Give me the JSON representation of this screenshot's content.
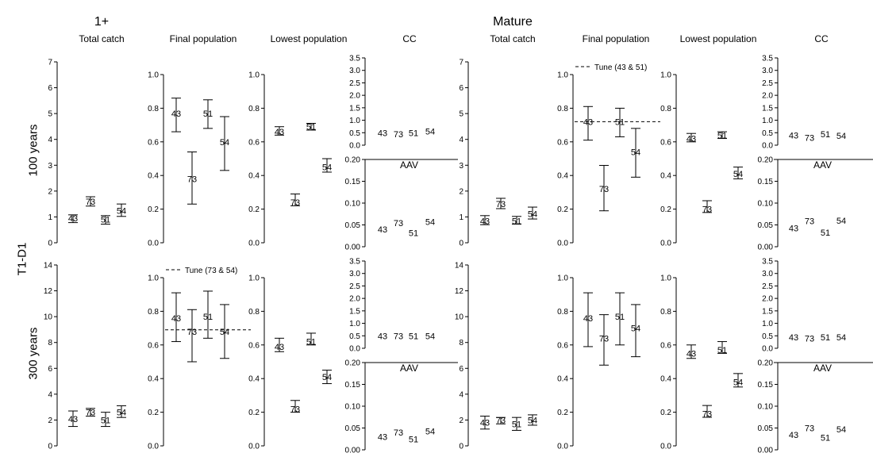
{
  "figure": {
    "row_label": "T1-D1",
    "groups": [
      "1+",
      "Mature"
    ],
    "panel_titles": [
      "Total catch",
      "Final population",
      "Lowest population",
      "CC"
    ],
    "row_titles": [
      "100 years",
      "300 years"
    ],
    "aav_label": "AAV",
    "tune_labels": [
      "Tune (43 & 51)",
      "Tune (73 & 54)"
    ]
  },
  "chart_data": [
    {
      "type": "scatter",
      "title": "Total catch",
      "group": "1+",
      "row": "100 years",
      "ylim": [
        0,
        7
      ],
      "yticks": [
        0,
        1,
        2,
        3,
        4,
        5,
        6,
        7
      ],
      "points": [
        {
          "label": "43",
          "y": 0.95,
          "lo": 0.78,
          "hi": 1.08
        },
        {
          "label": "73",
          "y": 1.6,
          "lo": 1.42,
          "hi": 1.78
        },
        {
          "label": "51",
          "y": 0.9,
          "lo": 0.72,
          "hi": 1.05
        },
        {
          "label": "54",
          "y": 1.25,
          "lo": 1.02,
          "hi": 1.5
        }
      ]
    },
    {
      "type": "scatter",
      "title": "Final population",
      "group": "1+",
      "row": "100 years",
      "ylim": [
        0,
        1
      ],
      "yticks": [
        0.0,
        0.2,
        0.4,
        0.6,
        0.8,
        1.0
      ],
      "points": [
        {
          "label": "43",
          "y": 0.77,
          "lo": 0.66,
          "hi": 0.86
        },
        {
          "label": "73",
          "y": 0.38,
          "lo": 0.23,
          "hi": 0.54
        },
        {
          "label": "51",
          "y": 0.77,
          "lo": 0.68,
          "hi": 0.85
        },
        {
          "label": "54",
          "y": 0.6,
          "lo": 0.43,
          "hi": 0.75
        }
      ]
    },
    {
      "type": "scatter",
      "title": "Lowest population",
      "group": "1+",
      "row": "100 years",
      "ylim": [
        0,
        1
      ],
      "yticks": [
        0.0,
        0.2,
        0.4,
        0.6,
        0.8,
        1.0
      ],
      "points": [
        {
          "label": "43",
          "y": 0.66,
          "lo": 0.64,
          "hi": 0.69
        },
        {
          "label": "73",
          "y": 0.24,
          "lo": 0.22,
          "hi": 0.29
        },
        {
          "label": "51",
          "y": 0.69,
          "lo": 0.67,
          "hi": 0.71
        },
        {
          "label": "54",
          "y": 0.45,
          "lo": 0.42,
          "hi": 0.5
        }
      ]
    },
    {
      "type": "scatter",
      "title": "CC",
      "group": "1+",
      "row": "100 years",
      "ylim": [
        0,
        3.5
      ],
      "yticks": [
        0.0,
        0.5,
        1.0,
        1.5,
        2.0,
        2.5,
        3.0,
        3.5
      ],
      "points": [
        {
          "label": "43",
          "y": 0.5
        },
        {
          "label": "73",
          "y": 0.45
        },
        {
          "label": "51",
          "y": 0.5
        },
        {
          "label": "54",
          "y": 0.55
        }
      ]
    },
    {
      "type": "scatter",
      "title": "AAV",
      "group": "1+",
      "row": "100 years",
      "ylim": [
        0,
        0.2
      ],
      "yticks": [
        0.0,
        0.05,
        0.1,
        0.15,
        0.2
      ],
      "points": [
        {
          "label": "43",
          "y": 0.04
        },
        {
          "label": "73",
          "y": 0.055
        },
        {
          "label": "51",
          "y": 0.032
        },
        {
          "label": "54",
          "y": 0.057
        }
      ]
    },
    {
      "type": "scatter",
      "title": "Total catch",
      "group": "Mature",
      "row": "100 years",
      "ylim": [
        0,
        7
      ],
      "yticks": [
        0,
        1,
        2,
        3,
        4,
        5,
        6,
        7
      ],
      "points": [
        {
          "label": "43",
          "y": 0.85,
          "lo": 0.7,
          "hi": 1.05
        },
        {
          "label": "73",
          "y": 1.5,
          "lo": 1.32,
          "hi": 1.72
        },
        {
          "label": "51",
          "y": 0.85,
          "lo": 0.72,
          "hi": 1.02
        },
        {
          "label": "54",
          "y": 1.12,
          "lo": 0.92,
          "hi": 1.38
        }
      ]
    },
    {
      "type": "scatter",
      "title": "Final population",
      "group": "Mature",
      "row": "100 years",
      "ylim": [
        0,
        1
      ],
      "yticks": [
        0.0,
        0.2,
        0.4,
        0.6,
        0.8,
        1.0
      ],
      "reference": {
        "y": 0.72,
        "label": "Tune (43 & 51)"
      },
      "points": [
        {
          "label": "43",
          "y": 0.72,
          "lo": 0.61,
          "hi": 0.81
        },
        {
          "label": "73",
          "y": 0.32,
          "lo": 0.19,
          "hi": 0.46
        },
        {
          "label": "51",
          "y": 0.72,
          "lo": 0.63,
          "hi": 0.8
        },
        {
          "label": "54",
          "y": 0.54,
          "lo": 0.39,
          "hi": 0.68
        }
      ]
    },
    {
      "type": "scatter",
      "title": "Lowest population",
      "group": "Mature",
      "row": "100 years",
      "ylim": [
        0,
        1
      ],
      "yticks": [
        0.0,
        0.2,
        0.4,
        0.6,
        0.8,
        1.0
      ],
      "points": [
        {
          "label": "43",
          "y": 0.62,
          "lo": 0.6,
          "hi": 0.65
        },
        {
          "label": "73",
          "y": 0.2,
          "lo": 0.18,
          "hi": 0.25
        },
        {
          "label": "51",
          "y": 0.64,
          "lo": 0.62,
          "hi": 0.66
        },
        {
          "label": "54",
          "y": 0.41,
          "lo": 0.38,
          "hi": 0.45
        }
      ]
    },
    {
      "type": "scatter",
      "title": "CC",
      "group": "Mature",
      "row": "100 years",
      "ylim": [
        0,
        3.5
      ],
      "yticks": [
        0.0,
        0.5,
        1.0,
        1.5,
        2.0,
        2.5,
        3.0,
        3.5
      ],
      "points": [
        {
          "label": "43",
          "y": 0.4
        },
        {
          "label": "73",
          "y": 0.3
        },
        {
          "label": "51",
          "y": 0.45
        },
        {
          "label": "54",
          "y": 0.38
        }
      ]
    },
    {
      "type": "scatter",
      "title": "AAV",
      "group": "Mature",
      "row": "100 years",
      "ylim": [
        0,
        0.2
      ],
      "yticks": [
        0.0,
        0.05,
        0.1,
        0.15,
        0.2
      ],
      "points": [
        {
          "label": "43",
          "y": 0.043
        },
        {
          "label": "73",
          "y": 0.059
        },
        {
          "label": "51",
          "y": 0.033
        },
        {
          "label": "54",
          "y": 0.06
        }
      ]
    },
    {
      "type": "scatter",
      "title": "Total catch",
      "group": "1+",
      "row": "300 years",
      "ylim": [
        0,
        14
      ],
      "yticks": [
        0,
        2,
        4,
        6,
        8,
        10,
        12,
        14
      ],
      "points": [
        {
          "label": "43",
          "y": 2.1,
          "lo": 1.5,
          "hi": 2.7
        },
        {
          "label": "73",
          "y": 2.6,
          "lo": 2.3,
          "hi": 2.9
        },
        {
          "label": "51",
          "y": 2.0,
          "lo": 1.5,
          "hi": 2.6
        },
        {
          "label": "54",
          "y": 2.6,
          "lo": 2.2,
          "hi": 3.1
        }
      ]
    },
    {
      "type": "scatter",
      "title": "Final population",
      "group": "1+",
      "row": "300 years",
      "ylim": [
        0,
        1
      ],
      "yticks": [
        0.0,
        0.2,
        0.4,
        0.6,
        0.8,
        1.0
      ],
      "reference": {
        "y": 0.69,
        "label": "Tune (73 & 54)"
      },
      "points": [
        {
          "label": "43",
          "y": 0.76,
          "lo": 0.62,
          "hi": 0.91
        },
        {
          "label": "73",
          "y": 0.68,
          "lo": 0.5,
          "hi": 0.81
        },
        {
          "label": "51",
          "y": 0.77,
          "lo": 0.64,
          "hi": 0.92
        },
        {
          "label": "54",
          "y": 0.68,
          "lo": 0.52,
          "hi": 0.84
        }
      ]
    },
    {
      "type": "scatter",
      "title": "Lowest population",
      "group": "1+",
      "row": "300 years",
      "ylim": [
        0,
        1
      ],
      "yticks": [
        0.0,
        0.2,
        0.4,
        0.6,
        0.8,
        1.0
      ],
      "points": [
        {
          "label": "43",
          "y": 0.59,
          "lo": 0.56,
          "hi": 0.64
        },
        {
          "label": "73",
          "y": 0.22,
          "lo": 0.2,
          "hi": 0.27
        },
        {
          "label": "51",
          "y": 0.62,
          "lo": 0.6,
          "hi": 0.67
        },
        {
          "label": "54",
          "y": 0.41,
          "lo": 0.37,
          "hi": 0.45
        }
      ]
    },
    {
      "type": "scatter",
      "title": "CC",
      "group": "1+",
      "row": "300 years",
      "ylim": [
        0,
        3.5
      ],
      "yticks": [
        0.0,
        0.5,
        1.0,
        1.5,
        2.0,
        2.5,
        3.0,
        3.5
      ],
      "points": [
        {
          "label": "43",
          "y": 0.5
        },
        {
          "label": "73",
          "y": 0.5
        },
        {
          "label": "51",
          "y": 0.5
        },
        {
          "label": "54",
          "y": 0.5
        }
      ]
    },
    {
      "type": "scatter",
      "title": "AAV",
      "group": "1+",
      "row": "300 years",
      "ylim": [
        0,
        0.2
      ],
      "yticks": [
        0.0,
        0.05,
        0.1,
        0.15,
        0.2
      ],
      "points": [
        {
          "label": "43",
          "y": 0.03
        },
        {
          "label": "73",
          "y": 0.04
        },
        {
          "label": "51",
          "y": 0.025
        },
        {
          "label": "54",
          "y": 0.043
        }
      ]
    },
    {
      "type": "scatter",
      "title": "Total catch",
      "group": "Mature",
      "row": "300 years",
      "ylim": [
        0,
        14
      ],
      "yticks": [
        0,
        2,
        4,
        6,
        8,
        10,
        12,
        14
      ],
      "points": [
        {
          "label": "43",
          "y": 1.8,
          "lo": 1.3,
          "hi": 2.3
        },
        {
          "label": "73",
          "y": 2.0,
          "lo": 1.7,
          "hi": 2.2
        },
        {
          "label": "51",
          "y": 1.7,
          "lo": 1.2,
          "hi": 2.2
        },
        {
          "label": "54",
          "y": 2.0,
          "lo": 1.6,
          "hi": 2.4
        }
      ]
    },
    {
      "type": "scatter",
      "title": "Final population",
      "group": "Mature",
      "row": "300 years",
      "ylim": [
        0,
        1
      ],
      "yticks": [
        0.0,
        0.2,
        0.4,
        0.6,
        0.8,
        1.0
      ],
      "points": [
        {
          "label": "43",
          "y": 0.76,
          "lo": 0.59,
          "hi": 0.91
        },
        {
          "label": "73",
          "y": 0.64,
          "lo": 0.48,
          "hi": 0.78
        },
        {
          "label": "51",
          "y": 0.77,
          "lo": 0.6,
          "hi": 0.91
        },
        {
          "label": "54",
          "y": 0.7,
          "lo": 0.53,
          "hi": 0.84
        }
      ]
    },
    {
      "type": "scatter",
      "title": "Lowest population",
      "group": "Mature",
      "row": "300 years",
      "ylim": [
        0,
        1
      ],
      "yticks": [
        0.0,
        0.2,
        0.4,
        0.6,
        0.8,
        1.0
      ],
      "points": [
        {
          "label": "43",
          "y": 0.55,
          "lo": 0.52,
          "hi": 0.6
        },
        {
          "label": "73",
          "y": 0.19,
          "lo": 0.17,
          "hi": 0.24
        },
        {
          "label": "51",
          "y": 0.57,
          "lo": 0.55,
          "hi": 0.62
        },
        {
          "label": "54",
          "y": 0.38,
          "lo": 0.35,
          "hi": 0.43
        }
      ]
    },
    {
      "type": "scatter",
      "title": "CC",
      "group": "Mature",
      "row": "300 years",
      "ylim": [
        0,
        3.5
      ],
      "yticks": [
        0.0,
        0.5,
        1.0,
        1.5,
        2.0,
        2.5,
        3.0,
        3.5
      ],
      "points": [
        {
          "label": "43",
          "y": 0.45
        },
        {
          "label": "73",
          "y": 0.4
        },
        {
          "label": "51",
          "y": 0.45
        },
        {
          "label": "54",
          "y": 0.45
        }
      ]
    },
    {
      "type": "scatter",
      "title": "AAV",
      "group": "Mature",
      "row": "300 years",
      "ylim": [
        0,
        0.2
      ],
      "yticks": [
        0.0,
        0.05,
        0.1,
        0.15,
        0.2
      ],
      "points": [
        {
          "label": "43",
          "y": 0.035
        },
        {
          "label": "73",
          "y": 0.05
        },
        {
          "label": "51",
          "y": 0.028
        },
        {
          "label": "54",
          "y": 0.047
        }
      ]
    }
  ]
}
